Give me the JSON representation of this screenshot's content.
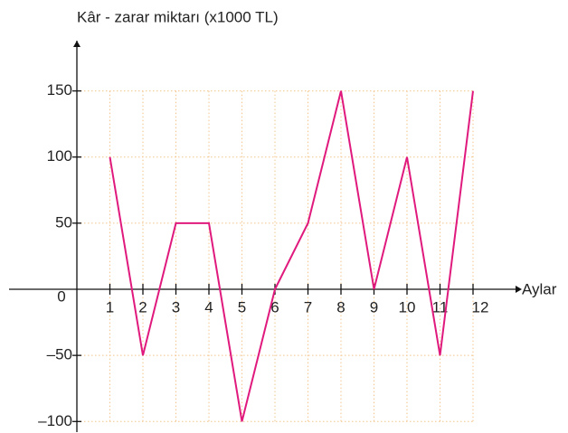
{
  "chart_data": {
    "type": "line",
    "y_label": "Kâr - zarar miktarı (x1000 TL)",
    "x_label": "Aylar",
    "categories": [
      "1",
      "2",
      "3",
      "4",
      "5",
      "6",
      "7",
      "8",
      "9",
      "10",
      "11",
      "12"
    ],
    "series": [
      {
        "name": null,
        "color": "#e0197d",
        "values": [
          100,
          -50,
          50,
          50,
          -100,
          0,
          50,
          150,
          0,
          100,
          -50,
          150
        ]
      }
    ],
    "ylim": [
      -108,
      188
    ],
    "yticks": [
      {
        "value": -100,
        "label": "–100"
      },
      {
        "value": -50,
        "label": "–50"
      },
      0,
      50,
      100,
      150
    ],
    "grid": true
  }
}
